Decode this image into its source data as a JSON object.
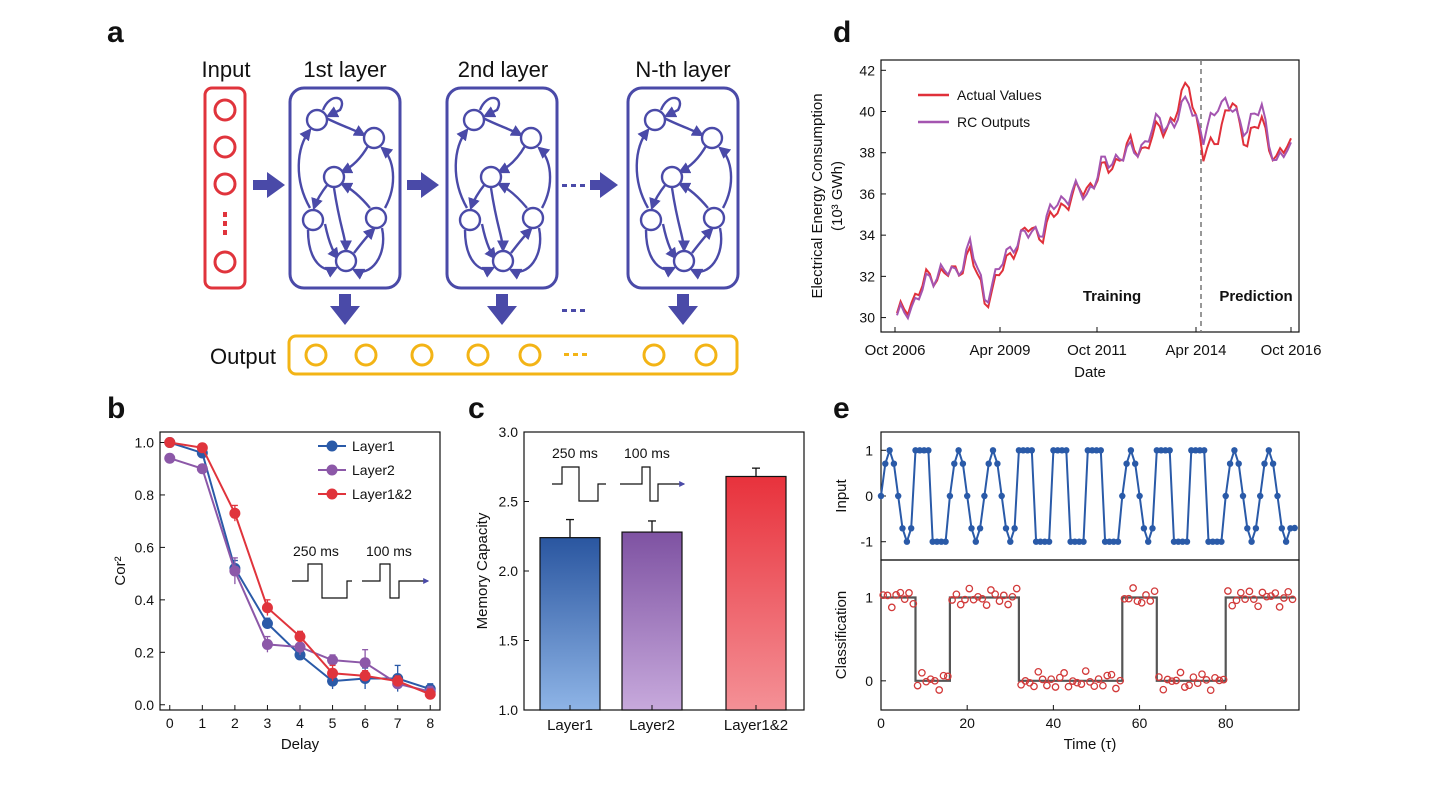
{
  "panels": {
    "a": "a",
    "b": "b",
    "c": "c",
    "d": "d",
    "e": "e"
  },
  "diagram": {
    "input_label": "Input",
    "layer_labels": [
      "1st layer",
      "2nd layer",
      "N-th layer"
    ],
    "output_label": "Output",
    "colors": {
      "input": "#e0343c",
      "layer": "#4a4aa8",
      "output": "#f3b416"
    }
  },
  "chart_data": [
    {
      "panel": "b",
      "type": "line",
      "xlabel": "Delay",
      "ylabel": "Cor²",
      "xlim": [
        -0.3,
        8.3
      ],
      "ylim": [
        -0.02,
        1.04
      ],
      "xticks": [
        "0",
        "1",
        "2",
        "3",
        "4",
        "5",
        "6",
        "7",
        "8"
      ],
      "yticks": [
        "0.0",
        "0.2",
        "0.4",
        "0.6",
        "0.8",
        "1.0"
      ],
      "x": [
        0,
        1,
        2,
        3,
        4,
        5,
        6,
        7,
        8
      ],
      "series": [
        {
          "name": "Layer1",
          "color": "#2a5aa8",
          "values": [
            1.0,
            0.96,
            0.52,
            0.31,
            0.19,
            0.09,
            0.1,
            0.1,
            0.06
          ],
          "err": [
            0.01,
            0.01,
            0.03,
            0.02,
            0.02,
            0.03,
            0.04,
            0.05,
            0.02
          ]
        },
        {
          "name": "Layer2",
          "color": "#8c58a8",
          "values": [
            0.94,
            0.9,
            0.51,
            0.23,
            0.22,
            0.17,
            0.16,
            0.08,
            0.05
          ],
          "err": [
            0.01,
            0.01,
            0.05,
            0.03,
            0.03,
            0.02,
            0.05,
            0.02,
            0.02
          ]
        },
        {
          "name": "Layer1&2",
          "color": "#e0343c",
          "values": [
            1.0,
            0.98,
            0.73,
            0.37,
            0.26,
            0.12,
            0.11,
            0.09,
            0.04
          ],
          "err": [
            0.01,
            0.01,
            0.03,
            0.03,
            0.02,
            0.03,
            0.02,
            0.02,
            0.02
          ]
        }
      ],
      "legend": "top-right",
      "annotations": [
        "250 ms",
        "100 ms"
      ]
    },
    {
      "panel": "c",
      "type": "bar",
      "ylabel": "Memory Capacity",
      "ylim": [
        1.0,
        3.0
      ],
      "yticks": [
        "1.0",
        "1.5",
        "2.0",
        "2.5",
        "3.0"
      ],
      "categories": [
        "Layer1",
        "Layer2",
        "Layer1&2"
      ],
      "values": [
        2.24,
        2.28,
        2.68
      ],
      "err": [
        0.13,
        0.08,
        0.06
      ],
      "colors": [
        "#2a56a0",
        "#7e52a2",
        "#e8323c"
      ],
      "annotations": [
        "250 ms",
        "100 ms"
      ]
    },
    {
      "panel": "d",
      "type": "line",
      "xlabel": "Date",
      "ylabel": "Electrical Energy Consumption",
      "ylabel2": "(10³ GWh)",
      "ylim": [
        29.3,
        42.5
      ],
      "xticks": [
        "Oct 2006",
        "Apr 2009",
        "Oct 2011",
        "Apr 2014",
        "Oct 2016"
      ],
      "yticks": [
        "30",
        "32",
        "34",
        "36",
        "38",
        "40",
        "42"
      ],
      "legend": "top-left",
      "series_names": [
        "Actual Values",
        "RC Outputs"
      ],
      "series_colors": [
        "#e0303a",
        "#a455b0"
      ],
      "region_labels": [
        "Training",
        "Prediction"
      ],
      "split_at": "Apr 2014",
      "anchors_actual": [
        [
          0,
          30.0
        ],
        [
          4,
          30.8
        ],
        [
          8,
          31.8
        ],
        [
          12,
          32.2
        ],
        [
          16,
          32.1
        ],
        [
          20,
          33.2
        ],
        [
          24,
          30.8
        ],
        [
          28,
          32.0
        ],
        [
          32,
          33.4
        ],
        [
          36,
          34.3
        ],
        [
          40,
          34.1
        ],
        [
          44,
          35.2
        ],
        [
          48,
          35.9
        ],
        [
          52,
          36.3
        ],
        [
          56,
          37.0
        ],
        [
          60,
          37.6
        ],
        [
          64,
          38.3
        ],
        [
          68,
          38.2
        ],
        [
          72,
          39.2
        ],
        [
          76,
          39.6
        ],
        [
          80,
          41.6
        ],
        [
          84,
          37.7
        ],
        [
          88,
          39.0
        ],
        [
          92,
          40.4
        ],
        [
          96,
          38.5
        ],
        [
          100,
          39.6
        ],
        [
          104,
          37.5
        ],
        [
          108,
          38.7
        ]
      ],
      "anchors_rc": [
        [
          0,
          29.9
        ],
        [
          4,
          30.6
        ],
        [
          8,
          31.6
        ],
        [
          12,
          32.4
        ],
        [
          16,
          32.0
        ],
        [
          20,
          33.6
        ],
        [
          24,
          31.0
        ],
        [
          28,
          32.3
        ],
        [
          32,
          33.7
        ],
        [
          36,
          34.0
        ],
        [
          40,
          34.4
        ],
        [
          44,
          35.6
        ],
        [
          48,
          36.1
        ],
        [
          52,
          36.0
        ],
        [
          56,
          37.3
        ],
        [
          60,
          37.8
        ],
        [
          64,
          38.0
        ],
        [
          68,
          38.5
        ],
        [
          72,
          39.6
        ],
        [
          76,
          39.3
        ],
        [
          80,
          40.8
        ],
        [
          84,
          38.5
        ],
        [
          88,
          40.6
        ],
        [
          92,
          40.0
        ],
        [
          96,
          39.2
        ],
        [
          100,
          40.2
        ],
        [
          104,
          37.3
        ],
        [
          108,
          38.5
        ]
      ]
    },
    {
      "panel": "e",
      "type": "line",
      "subplots": [
        {
          "ylabel": "Input",
          "yticks": [
            "-1",
            "0",
            "1"
          ],
          "ylim": [
            -1.4,
            1.4
          ],
          "color": "#2a5aa8"
        },
        {
          "ylabel": "Classification",
          "yticks": [
            "0",
            "1"
          ],
          "ylim": [
            -0.35,
            1.45
          ],
          "color": "#d23a3a",
          "target_color": "#555555"
        }
      ],
      "xlabel": "Time (τ)",
      "xlim": [
        0,
        97
      ],
      "xticks": [
        "0",
        "20",
        "40",
        "60",
        "80"
      ],
      "segments": [
        {
          "type": "sine",
          "start": 0,
          "end": 8,
          "class": 1
        },
        {
          "type": "square",
          "start": 8,
          "end": 16,
          "class": 0
        },
        {
          "type": "sine",
          "start": 16,
          "end": 32,
          "class": 1
        },
        {
          "type": "square",
          "start": 32,
          "end": 56,
          "class": 0
        },
        {
          "type": "sine",
          "start": 56,
          "end": 64,
          "class": 1
        },
        {
          "type": "square",
          "start": 64,
          "end": 80,
          "class": 0
        },
        {
          "type": "sine",
          "start": 80,
          "end": 96,
          "class": 1
        }
      ]
    }
  ]
}
